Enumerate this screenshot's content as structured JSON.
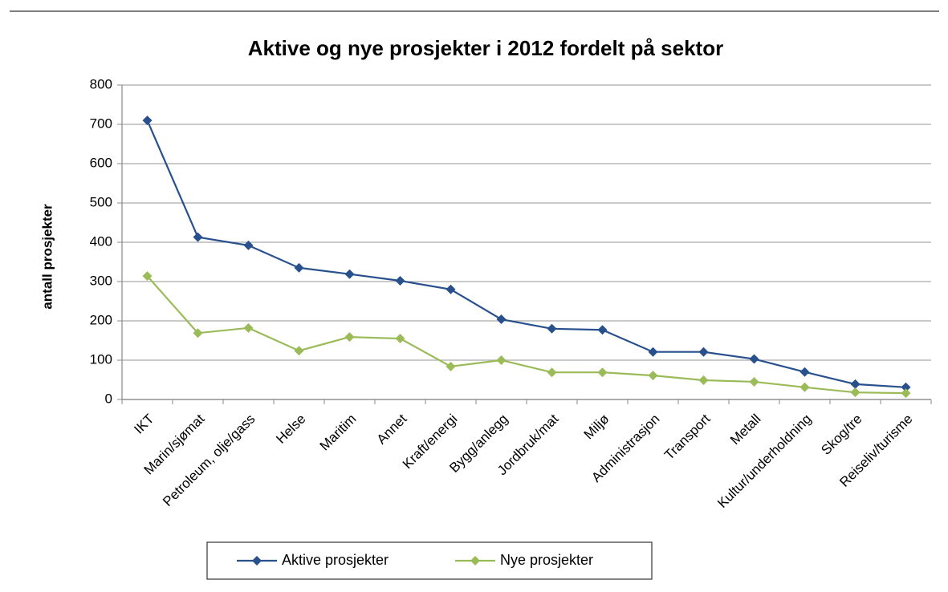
{
  "chart_data": {
    "type": "line",
    "title": "Aktive og nye prosjekter i 2012 fordelt på sektor",
    "y_label": "antall prosjekter",
    "categories": [
      "IKT",
      "Marin/sjømat",
      "Petroleum, olje/gass",
      "Helse",
      "Maritim",
      "Annet",
      "Kraft/energi",
      "Bygg/anlegg",
      "Jordbruk/mat",
      "Miljø",
      "Administrasjon",
      "Transport",
      "Metall",
      "Kultur/underholdning",
      "Skog/tre",
      "Reiseliv/turisme"
    ],
    "series": [
      {
        "name": "Aktive prosjekter",
        "color": "#27508d",
        "values": [
          710,
          413,
          392,
          335,
          319,
          302,
          280,
          204,
          180,
          177,
          121,
          121,
          103,
          70,
          39,
          31
        ]
      },
      {
        "name": "Nye prosjekter",
        "color": "#9bbb59",
        "values": [
          314,
          169,
          182,
          124,
          159,
          155,
          84,
          100,
          69,
          69,
          61,
          49,
          45,
          31,
          18,
          16
        ]
      }
    ],
    "ylim": [
      0,
      800
    ],
    "yticks": [
      0,
      100,
      200,
      300,
      400,
      500,
      600,
      700,
      800
    ],
    "grid": true,
    "legend": "bottom"
  }
}
